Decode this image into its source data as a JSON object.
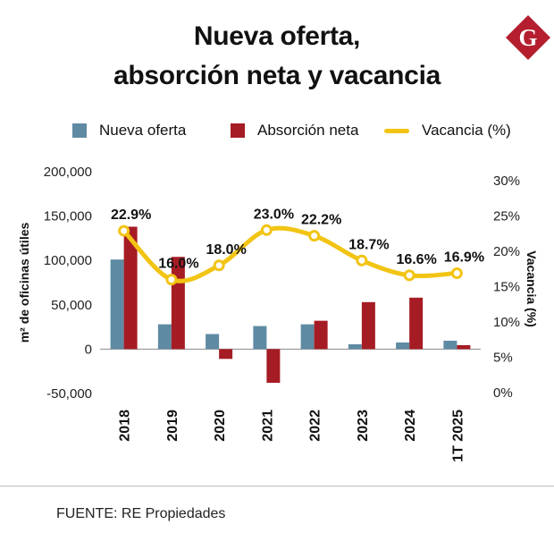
{
  "title": {
    "line1": "Nueva oferta,",
    "line2": "absorción neta y vacancia"
  },
  "logo": {
    "letter": "G",
    "color": "#b41e2e"
  },
  "legend": [
    {
      "label": "Nueva oferta",
      "color": "#5f8aa3",
      "kind": "bar"
    },
    {
      "label": "Absorción neta",
      "color": "#a61c24",
      "kind": "bar"
    },
    {
      "label": "Vacancia (%)",
      "color": "#f2c413",
      "kind": "line"
    }
  ],
  "source": "FUENTE: RE Propiedades",
  "chart_data": {
    "type": "bar+line",
    "categories": [
      "2018",
      "2019",
      "2020",
      "2021",
      "2022",
      "2023",
      "2024",
      "1T 2025"
    ],
    "series": [
      {
        "name": "Nueva oferta",
        "axis": "left",
        "color": "#5f8aa3",
        "values": [
          101000,
          28000,
          17000,
          26000,
          28000,
          5500,
          7500,
          9500
        ]
      },
      {
        "name": "Absorción neta",
        "axis": "left",
        "color": "#a61c24",
        "values": [
          138000,
          104000,
          -11000,
          -38000,
          32000,
          53000,
          58000,
          4500
        ]
      },
      {
        "name": "Vacancia (%)",
        "axis": "right",
        "color": "#f2c413",
        "values": [
          22.9,
          16.0,
          18.0,
          23.0,
          22.2,
          18.7,
          16.6,
          16.9
        ],
        "data_labels": [
          "22.9%",
          "16.0%",
          "18.0%",
          "23.0%",
          "22.2%",
          "18.7%",
          "16.6%",
          "16.9%"
        ]
      }
    ],
    "ylabel": "m² de oficinas útiles",
    "y2label": "Vacancia (%)",
    "ylim": [
      -50000,
      200000
    ],
    "y2lim": [
      0,
      30
    ],
    "yticks": [
      "-50,000",
      "0",
      "50,000",
      "100,000",
      "150,000",
      "200,000"
    ],
    "y2ticks": [
      "0%",
      "5%",
      "10%",
      "15%",
      "20%",
      "25%",
      "30%"
    ]
  }
}
